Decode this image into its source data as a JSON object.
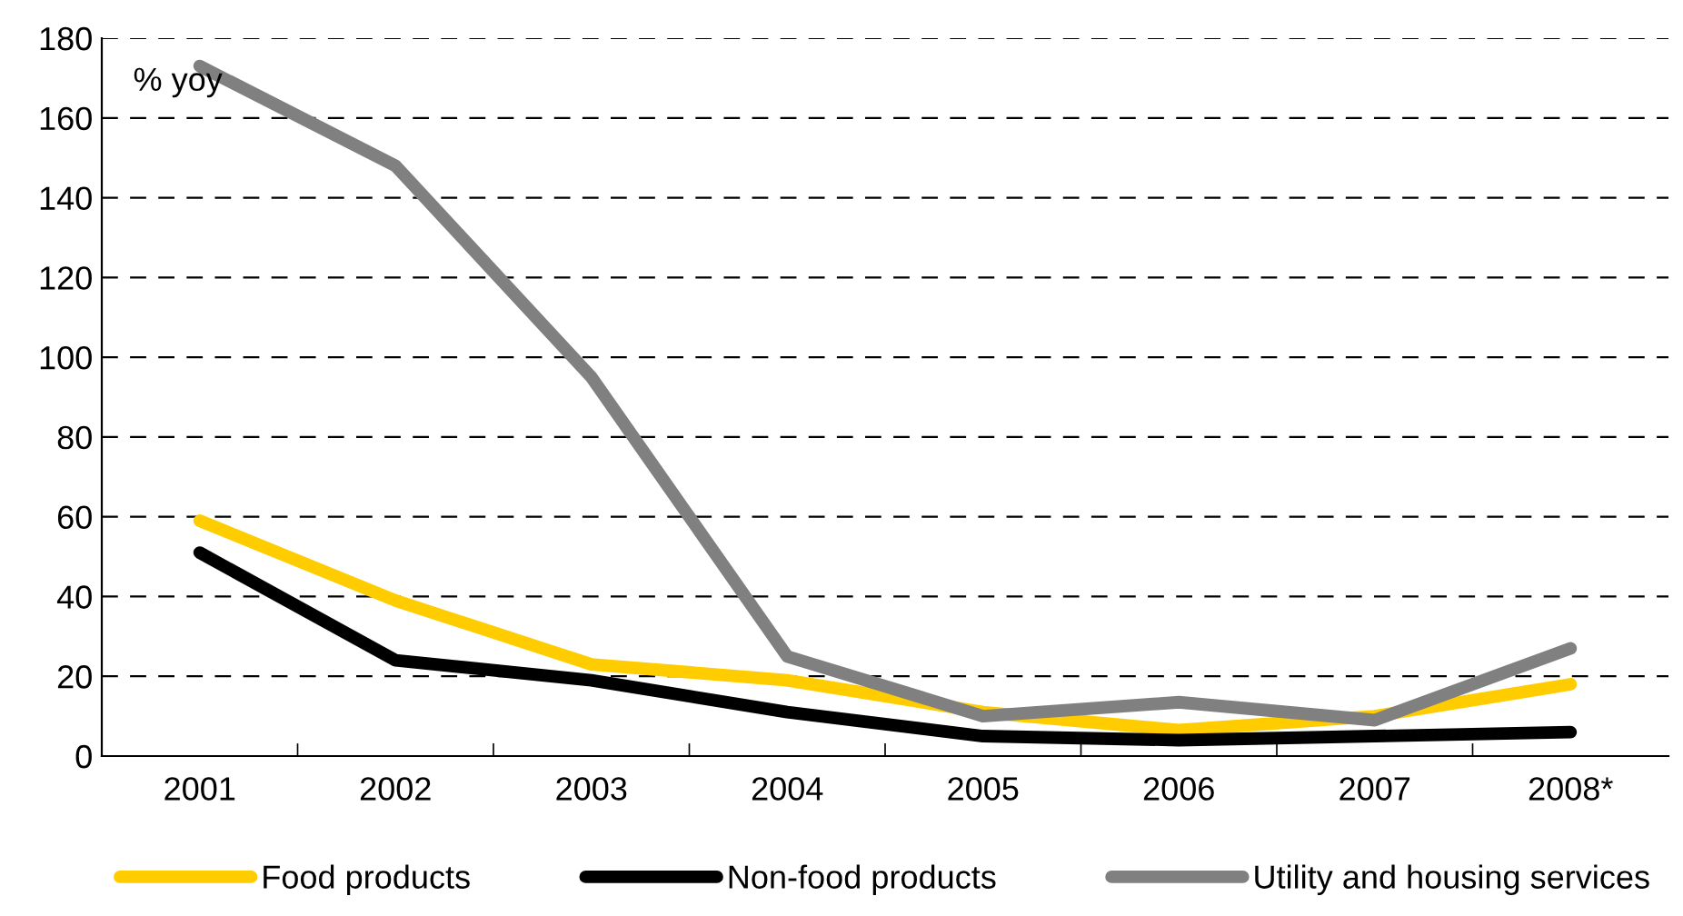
{
  "chart_data": {
    "type": "line",
    "ylabel": "% yoy",
    "categories": [
      "2001",
      "2002",
      "2003",
      "2004",
      "2005",
      "2006",
      "2007",
      "2008*"
    ],
    "series": [
      {
        "name": "Food products",
        "color": "#ffcc00",
        "values": [
          59,
          39,
          23,
          19,
          11,
          6.5,
          10,
          18
        ]
      },
      {
        "name": "Non-food products",
        "color": "#000000",
        "values": [
          51,
          24,
          19,
          11,
          5,
          4,
          5,
          6
        ]
      },
      {
        "name": "Utility and housing services",
        "color": "#808080",
        "values": [
          173,
          148,
          95,
          25,
          10,
          13.5,
          9,
          27
        ]
      }
    ],
    "ylim": [
      0,
      180
    ],
    "yticks": [
      0,
      20,
      40,
      60,
      80,
      100,
      120,
      140,
      160,
      180
    ],
    "grid": "y",
    "legend": "bottom",
    "marker": "none",
    "line_style": "solid"
  }
}
